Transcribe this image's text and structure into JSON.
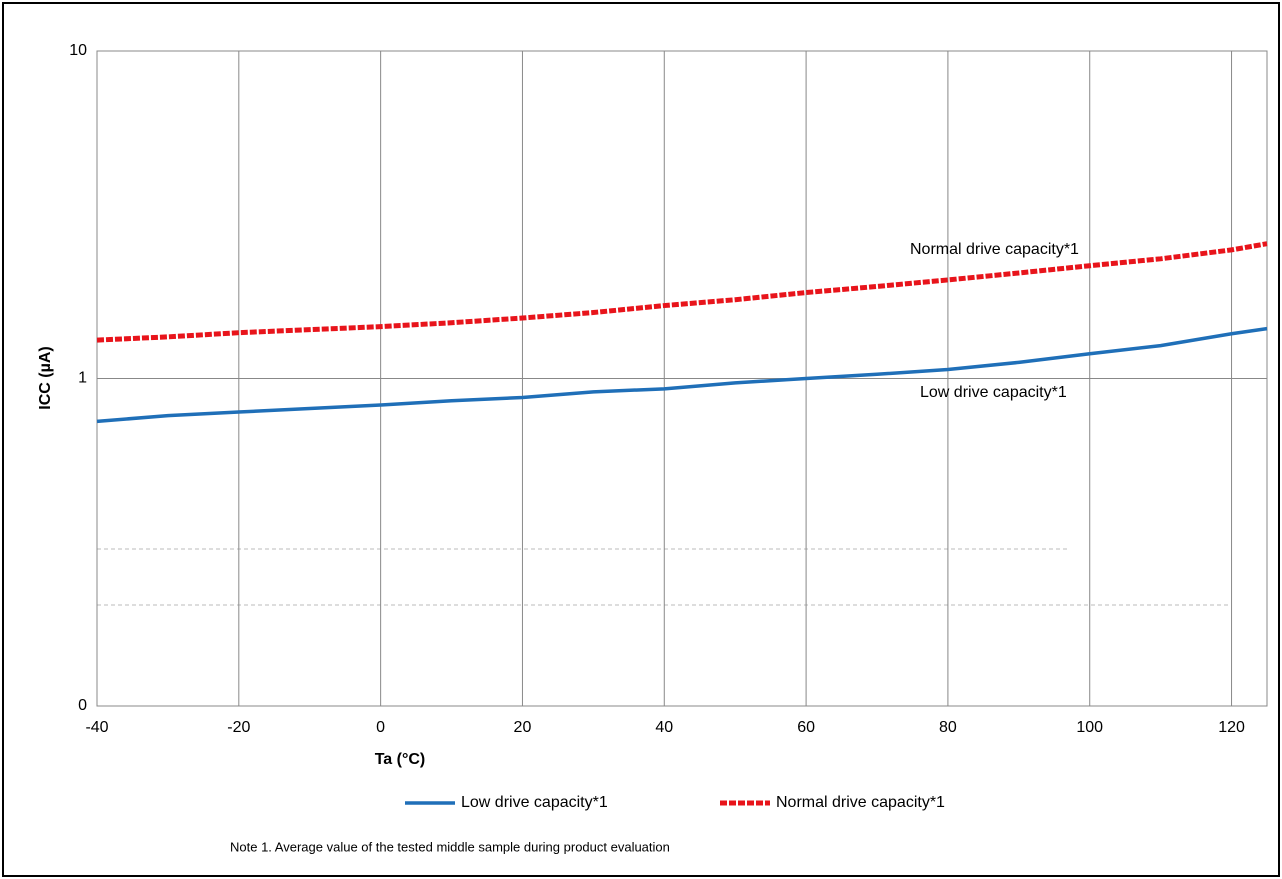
{
  "chart_data": {
    "type": "line",
    "xlabel": "Ta (°C)",
    "ylabel": "ICC (µA)",
    "x": [
      -40,
      -30,
      -20,
      -10,
      0,
      10,
      20,
      30,
      40,
      50,
      60,
      70,
      80,
      90,
      100,
      110,
      120,
      125
    ],
    "series": [
      {
        "name": "Low drive capacity*1",
        "color": "#1f6fb8",
        "line_style": "solid",
        "values": [
          0.74,
          0.77,
          0.79,
          0.81,
          0.83,
          0.855,
          0.875,
          0.91,
          0.93,
          0.97,
          1.0,
          1.03,
          1.065,
          1.12,
          1.19,
          1.26,
          1.37,
          1.42
        ]
      },
      {
        "name": "Normal drive capacity*1",
        "color": "#e8141b",
        "line_style": "dashed",
        "values": [
          1.31,
          1.34,
          1.38,
          1.41,
          1.44,
          1.48,
          1.53,
          1.59,
          1.67,
          1.74,
          1.83,
          1.91,
          2.0,
          2.1,
          2.21,
          2.32,
          2.47,
          2.58
        ]
      }
    ],
    "xlim": [
      -40,
      125
    ],
    "ylim": [
      0.1,
      10
    ],
    "log_y": true,
    "grid": true,
    "legend": "bottom",
    "xticks": [
      -40,
      -20,
      0,
      20,
      40,
      60,
      80,
      100,
      120
    ],
    "yticks": [
      {
        "value": 0.1,
        "label": "0"
      },
      1,
      10
    ],
    "annotations": [
      "Normal drive capacity*1",
      "Low drive capacity*1"
    ],
    "note": "Note 1. Average value of the tested middle sample during product evaluation"
  }
}
